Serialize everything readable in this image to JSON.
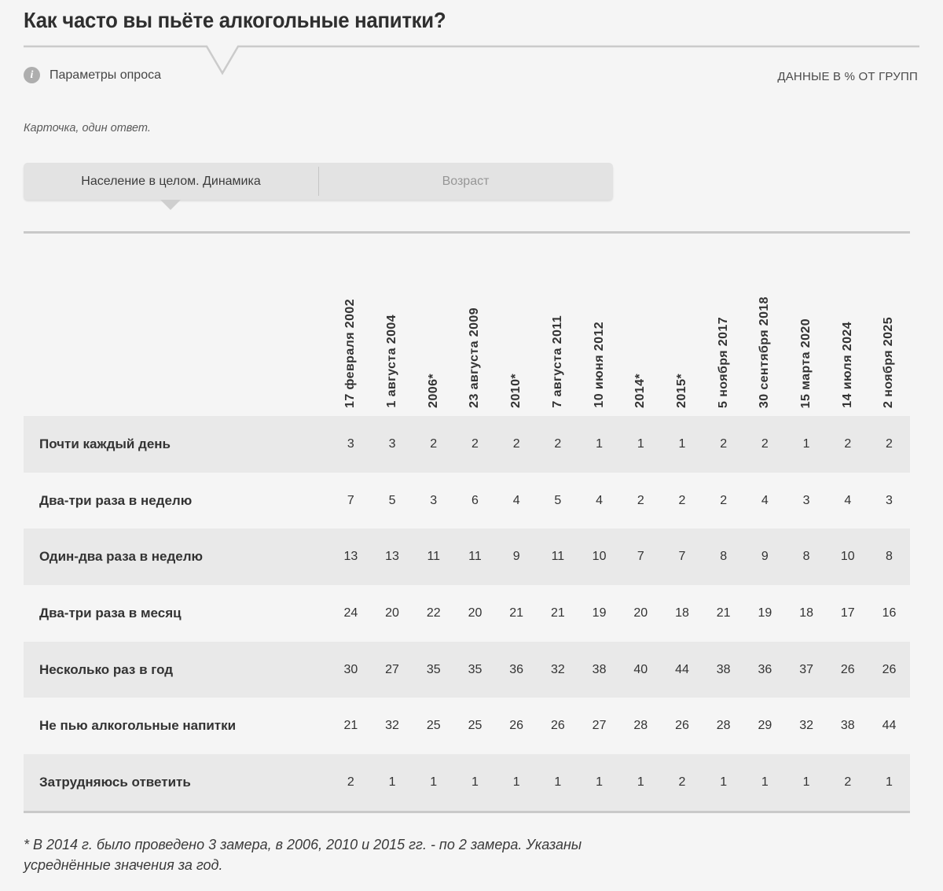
{
  "header": {
    "title": "Как часто вы пьёте алкогольные напитки?",
    "info_icon_glyph": "i",
    "survey_params_label": "Параметры опроса",
    "data_note": "ДАННЫЕ В % ОТ ГРУПП"
  },
  "question_note": "Карточка, один ответ.",
  "tabs": [
    {
      "label": "Население в целом. Динамика",
      "active": true
    },
    {
      "label": "Возраст",
      "active": false
    }
  ],
  "table": {
    "columns": [
      "17 февраля 2002",
      "1 августа 2004",
      "2006*",
      "23 августа 2009",
      "2010*",
      "7 августа 2011",
      "10 июня 2012",
      "2014*",
      "2015*",
      "5 ноября 2017",
      "30 сентября 2018",
      "15 марта 2020",
      "14 июля 2024",
      "2 ноября 2025"
    ],
    "rows": [
      {
        "label": "Почти каждый день",
        "values": [
          3,
          3,
          2,
          2,
          2,
          2,
          1,
          1,
          1,
          2,
          2,
          1,
          2,
          2
        ]
      },
      {
        "label": "Два-три раза в неделю",
        "values": [
          7,
          5,
          3,
          6,
          4,
          5,
          4,
          2,
          2,
          2,
          4,
          3,
          4,
          3
        ]
      },
      {
        "label": "Один-два раза в неделю",
        "values": [
          13,
          13,
          11,
          11,
          9,
          11,
          10,
          7,
          7,
          8,
          9,
          8,
          10,
          8
        ]
      },
      {
        "label": "Два-три раза в месяц",
        "values": [
          24,
          20,
          22,
          20,
          21,
          21,
          19,
          20,
          18,
          21,
          19,
          18,
          17,
          16
        ]
      },
      {
        "label": "Несколько раз в год",
        "values": [
          30,
          27,
          35,
          35,
          36,
          32,
          38,
          40,
          44,
          38,
          36,
          37,
          26,
          26
        ]
      },
      {
        "label": "Не пью алкогольные напитки",
        "values": [
          21,
          32,
          25,
          25,
          26,
          26,
          27,
          28,
          26,
          28,
          29,
          32,
          38,
          44
        ]
      },
      {
        "label": "Затрудняюсь ответить",
        "values": [
          2,
          1,
          1,
          1,
          1,
          1,
          1,
          1,
          2,
          1,
          1,
          1,
          2,
          1
        ]
      }
    ]
  },
  "footnote": {
    "line1": "* В 2014 г. было проведено 3 замера, в 2006, 2010 и 2015 гг. - по 2 замера. Указаны",
    "line2": "усреднённые значения за год."
  },
  "colors": {
    "page_bg": "#f5f5f5",
    "row_stripe": "#e9e9e9",
    "table_border": "#c9c9c9",
    "tab_bg": "#e3e3e3",
    "active_text": "#3c3c3c",
    "inactive_text": "#969696"
  }
}
